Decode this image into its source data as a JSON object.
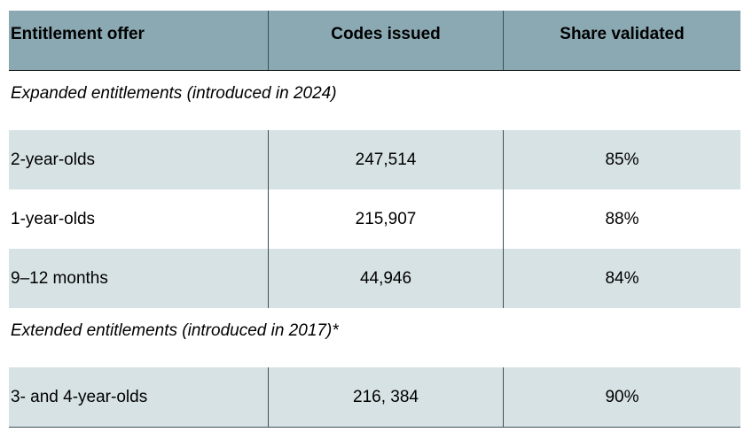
{
  "table": {
    "headers": [
      "Entitlement offer",
      "Codes issued",
      "Share validated"
    ],
    "sections": [
      {
        "title": "Expanded entitlements (introduced in 2024)",
        "rows": [
          {
            "offer": "2-year-olds",
            "codes": "247,514",
            "share": "85%"
          },
          {
            "offer": "1-year-olds",
            "codes": "215,907",
            "share": "88%"
          },
          {
            "offer": "9–12 months",
            "codes": "44,946",
            "share": "84%"
          }
        ]
      },
      {
        "title": "Extended entitlements (introduced in 2017)*",
        "rows": [
          {
            "offer": "3- and 4-year-olds",
            "codes": "216, 384",
            "share": "90%"
          }
        ]
      }
    ]
  },
  "colors": {
    "header_bg": "#8ba9b3",
    "shaded_row_bg": "#d7e2e4",
    "rule": "#3a4f57"
  }
}
